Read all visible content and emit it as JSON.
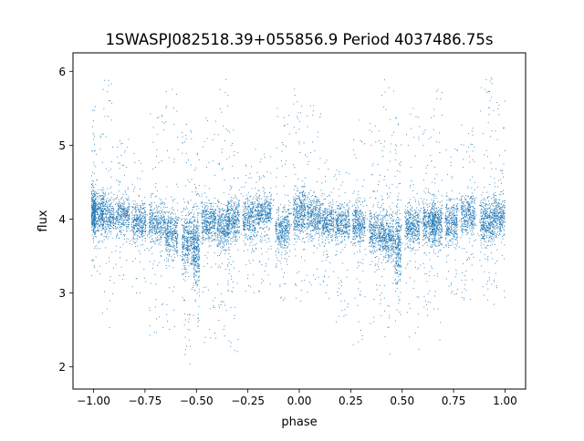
{
  "chart_data": {
    "type": "scatter",
    "title": "1SWASPJ082518.39+055856.9 Period 4037486.75s",
    "xlabel": "phase",
    "ylabel": "flux",
    "xlim": [
      -1.1,
      1.1
    ],
    "ylim": [
      1.7,
      6.25
    ],
    "xticks": [
      -1.0,
      -0.75,
      -0.5,
      -0.25,
      0.0,
      0.25,
      0.5,
      0.75,
      1.0
    ],
    "xtick_labels": [
      "−1.00",
      "−0.75",
      "−0.50",
      "−0.25",
      "0.00",
      "0.25",
      "0.50",
      "0.75",
      "1.00"
    ],
    "yticks": [
      2,
      3,
      4,
      5,
      6
    ],
    "ytick_labels": [
      "2",
      "3",
      "4",
      "5",
      "6"
    ],
    "grid": false,
    "marker_color": "#1f77b4",
    "series": [
      {
        "name": "",
        "clusters": [
          {
            "x": -1.0,
            "width": 0.01,
            "center": 4.1,
            "spread": 0.28,
            "lo": 3.4,
            "hi": 5.65,
            "weight": 1.0
          },
          {
            "x": -0.98,
            "width": 0.03,
            "center": 4.1,
            "spread": 0.24,
            "lo": 3.2,
            "hi": 5.2,
            "weight": 1.4
          },
          {
            "x": -0.93,
            "width": 0.03,
            "center": 4.05,
            "spread": 0.24,
            "lo": 2.5,
            "hi": 6.05,
            "weight": 1.2
          },
          {
            "x": -0.86,
            "width": 0.035,
            "center": 4.05,
            "spread": 0.22,
            "lo": 3.1,
            "hi": 5.1,
            "weight": 1.3
          },
          {
            "x": -0.78,
            "width": 0.035,
            "center": 3.95,
            "spread": 0.22,
            "lo": 3.0,
            "hi": 4.9,
            "weight": 1.3
          },
          {
            "x": -0.69,
            "width": 0.04,
            "center": 3.95,
            "spread": 0.24,
            "lo": 2.4,
            "hi": 5.5,
            "weight": 1.4
          },
          {
            "x": -0.62,
            "width": 0.03,
            "center": 3.8,
            "spread": 0.28,
            "lo": 2.3,
            "hi": 5.9,
            "weight": 1.3
          },
          {
            "x": -0.54,
            "width": 0.03,
            "center": 3.7,
            "spread": 0.35,
            "lo": 2.0,
            "hi": 5.3,
            "weight": 1.6
          },
          {
            "x": -0.5,
            "width": 0.015,
            "center": 3.55,
            "spread": 0.45,
            "lo": 2.5,
            "hi": 4.9,
            "weight": 1.2
          },
          {
            "x": -0.44,
            "width": 0.035,
            "center": 3.95,
            "spread": 0.25,
            "lo": 2.2,
            "hi": 5.4,
            "weight": 1.5
          },
          {
            "x": -0.37,
            "width": 0.03,
            "center": 3.9,
            "spread": 0.25,
            "lo": 2.4,
            "hi": 5.9,
            "weight": 1.4
          },
          {
            "x": -0.32,
            "width": 0.03,
            "center": 4.0,
            "spread": 0.25,
            "lo": 2.1,
            "hi": 5.3,
            "weight": 1.3
          },
          {
            "x": -0.24,
            "width": 0.035,
            "center": 4.0,
            "spread": 0.24,
            "lo": 3.0,
            "hi": 5.0,
            "weight": 1.3
          },
          {
            "x": -0.17,
            "width": 0.035,
            "center": 4.1,
            "spread": 0.22,
            "lo": 3.0,
            "hi": 4.9,
            "weight": 1.4
          },
          {
            "x": -0.08,
            "width": 0.035,
            "center": 3.85,
            "spread": 0.25,
            "lo": 2.9,
            "hi": 5.5,
            "weight": 1.4
          },
          {
            "x": 0.0,
            "width": 0.03,
            "center": 4.1,
            "spread": 0.28,
            "lo": 2.8,
            "hi": 5.9,
            "weight": 1.5
          },
          {
            "x": 0.07,
            "width": 0.035,
            "center": 4.05,
            "spread": 0.24,
            "lo": 3.0,
            "hi": 5.6,
            "weight": 1.4
          },
          {
            "x": 0.14,
            "width": 0.03,
            "center": 3.95,
            "spread": 0.22,
            "lo": 2.9,
            "hi": 4.9,
            "weight": 1.2
          },
          {
            "x": 0.21,
            "width": 0.035,
            "center": 3.95,
            "spread": 0.22,
            "lo": 2.6,
            "hi": 4.7,
            "weight": 1.3
          },
          {
            "x": 0.29,
            "width": 0.03,
            "center": 3.95,
            "spread": 0.25,
            "lo": 2.2,
            "hi": 5.5,
            "weight": 1.3
          },
          {
            "x": 0.37,
            "width": 0.03,
            "center": 3.8,
            "spread": 0.28,
            "lo": 2.5,
            "hi": 5.3,
            "weight": 1.3
          },
          {
            "x": 0.43,
            "width": 0.03,
            "center": 3.75,
            "spread": 0.3,
            "lo": 2.1,
            "hi": 5.9,
            "weight": 1.5
          },
          {
            "x": 0.48,
            "width": 0.015,
            "center": 3.6,
            "spread": 0.4,
            "lo": 2.6,
            "hi": 5.4,
            "weight": 1.1
          },
          {
            "x": 0.55,
            "width": 0.035,
            "center": 3.9,
            "spread": 0.24,
            "lo": 2.2,
            "hi": 5.5,
            "weight": 1.5
          },
          {
            "x": 0.63,
            "width": 0.03,
            "center": 3.95,
            "spread": 0.25,
            "lo": 2.6,
            "hi": 5.4,
            "weight": 1.4
          },
          {
            "x": 0.67,
            "width": 0.025,
            "center": 3.95,
            "spread": 0.28,
            "lo": 2.2,
            "hi": 5.8,
            "weight": 1.2
          },
          {
            "x": 0.74,
            "width": 0.03,
            "center": 3.95,
            "spread": 0.24,
            "lo": 2.9,
            "hi": 5.0,
            "weight": 1.3
          },
          {
            "x": 0.82,
            "width": 0.035,
            "center": 4.05,
            "spread": 0.24,
            "lo": 2.9,
            "hi": 5.3,
            "weight": 1.4
          },
          {
            "x": 0.91,
            "width": 0.03,
            "center": 3.95,
            "spread": 0.3,
            "lo": 2.9,
            "hi": 6.0,
            "weight": 1.4
          },
          {
            "x": 0.97,
            "width": 0.03,
            "center": 4.05,
            "spread": 0.26,
            "lo": 2.7,
            "hi": 5.6,
            "weight": 1.3
          }
        ]
      }
    ]
  }
}
